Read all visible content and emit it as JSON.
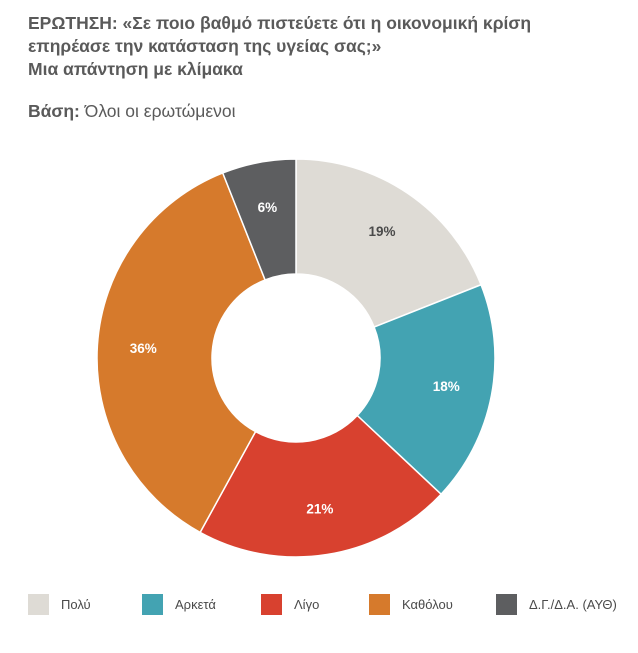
{
  "title": {
    "lines": [
      "ΕΡΩΤΗΣΗ: «Σε ποιο βαθμό πιστεύετε ότι  η οικονομική κρίση",
      "επηρέασε την κατάσταση της υγείας σας;»",
      "Μια απάντηση με κλίμακα"
    ]
  },
  "base": {
    "label": "Βάση:",
    "value": "Όλοι οι ερωτώμενοι"
  },
  "chart_data": {
    "type": "pie",
    "donut": true,
    "categories": [
      "Πολύ",
      "Αρκετά",
      "Λίγο",
      "Καθόλου",
      "Δ.Γ./Δ.Α. (ΑΥΘ)"
    ],
    "values": [
      19,
      18,
      21,
      36,
      6
    ],
    "labels": [
      "19%",
      "18%",
      "21%",
      "36%",
      "6%"
    ],
    "colors": [
      "#dedbd5",
      "#43a3b2",
      "#d8412f",
      "#d67a2c",
      "#5d5e60"
    ],
    "label_colors": [
      "#4a4a4a",
      "#ffffff",
      "#ffffff",
      "#ffffff",
      "#ffffff"
    ],
    "legend_position": "bottom"
  }
}
